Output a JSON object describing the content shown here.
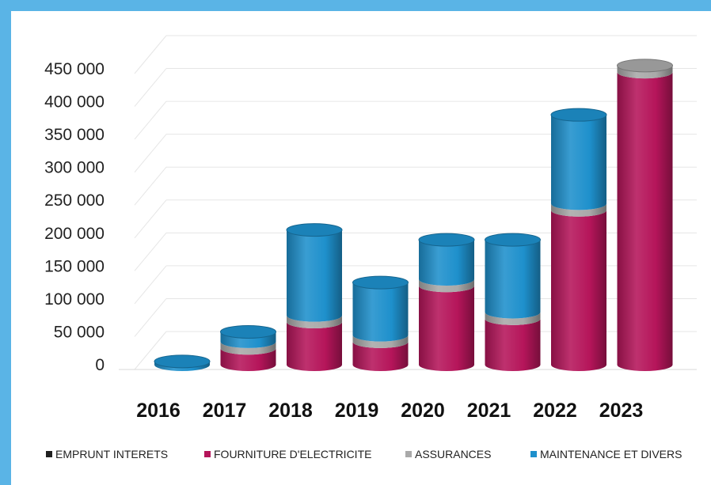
{
  "chart_data": {
    "type": "bar",
    "style": "3d-stacked-cylinder",
    "categories": [
      "2016",
      "2017",
      "2018",
      "2019",
      "2020",
      "2021",
      "2022",
      "2023"
    ],
    "series": [
      {
        "name": "EMPRUNT INTERETS",
        "color": "#1f1f1f",
        "values": [
          0,
          0,
          0,
          0,
          0,
          0,
          0,
          0
        ]
      },
      {
        "name": "FOURNITURE D'ELECTRICITE",
        "color": "#b5155a",
        "values": [
          0,
          25000,
          65000,
          35000,
          120000,
          70000,
          235000,
          445000
        ]
      },
      {
        "name": "ASSURANCES",
        "color": "#a9a9a9",
        "values": [
          0,
          10000,
          10000,
          10000,
          10000,
          10000,
          10000,
          10000
        ]
      },
      {
        "name": "MAINTENANCE ET DIVERS",
        "color": "#1e90cc",
        "values": [
          5000,
          15000,
          130000,
          80000,
          60000,
          110000,
          135000,
          0
        ]
      }
    ],
    "yticks": [
      "0",
      "50 000",
      "100 000",
      "150 000",
      "200 000",
      "250 000",
      "300 000",
      "350 000",
      "400 000",
      "450 000"
    ],
    "ylim": [
      0,
      450000
    ],
    "grid": true,
    "legend": "bottom"
  }
}
